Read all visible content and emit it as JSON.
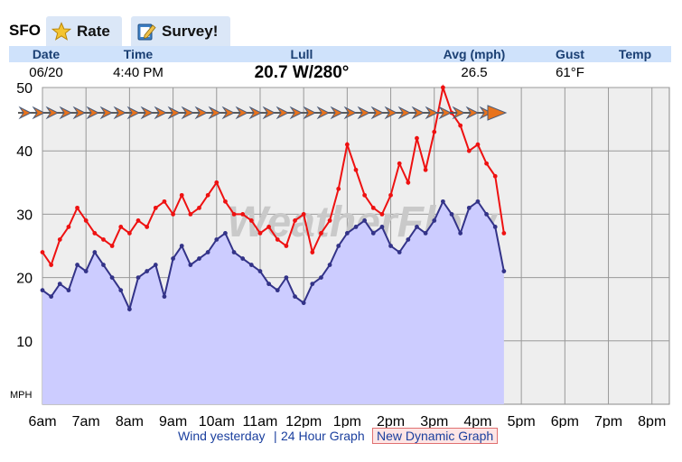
{
  "station": "SFO",
  "tabs": [
    {
      "label": "Rate",
      "icon": "star-icon"
    },
    {
      "label": "Survey!",
      "icon": "survey-pencil-icon"
    }
  ],
  "header": {
    "columns": [
      "Date",
      "Time",
      "Lull",
      "Avg (mph)",
      "Gust",
      "Temp"
    ]
  },
  "current": {
    "date": "06/20",
    "time": "4:40 PM",
    "wind": "20.7 W/280°",
    "avg": "26.5",
    "temp": "61°F"
  },
  "watermark": "WeatherFlow",
  "links": {
    "yesterday": "Wind yesterday",
    "separator": "|",
    "hour24": "24 Hour Graph",
    "dynamic": "New Dynamic Graph"
  },
  "colors": {
    "lull_line": "#333388",
    "lull_fill": "#ccccff",
    "gust_line": "#ee1111",
    "direction_arrow": "#e8731c",
    "plot_bg": "#eeeeee"
  },
  "chart_data": {
    "type": "line",
    "xlabel": "",
    "ylabel": "MPH",
    "ylim": [
      0,
      50
    ],
    "yticks": [
      10,
      20,
      30,
      40,
      50
    ],
    "xticks": [
      "6am",
      "7am",
      "8am",
      "9am",
      "10am",
      "11am",
      "12pm",
      "1pm",
      "2pm",
      "3pm",
      "4pm",
      "5pm",
      "6pm",
      "7pm",
      "8pm"
    ],
    "x_hours": [
      6.0,
      6.2,
      6.4,
      6.6,
      6.8,
      7.0,
      7.2,
      7.4,
      7.6,
      7.8,
      8.0,
      8.2,
      8.4,
      8.6,
      8.8,
      9.0,
      9.2,
      9.4,
      9.6,
      9.8,
      10.0,
      10.2,
      10.4,
      10.6,
      10.8,
      11.0,
      11.2,
      11.4,
      11.6,
      11.8,
      12.0,
      12.2,
      12.4,
      12.6,
      12.8,
      13.0,
      13.2,
      13.4,
      13.6,
      13.8,
      14.0,
      14.2,
      14.4,
      14.6,
      14.8,
      15.0,
      15.2,
      15.4,
      15.6,
      15.8,
      16.0,
      16.2,
      16.4,
      16.6
    ],
    "series": [
      {
        "values": [
          18,
          17,
          19,
          18,
          22,
          21,
          24,
          22,
          20,
          18,
          15,
          20,
          21,
          22,
          17,
          23,
          25,
          22,
          23,
          24,
          26,
          27,
          24,
          23,
          22,
          21,
          19,
          18,
          20,
          17,
          16,
          19,
          20,
          22,
          25,
          27,
          28,
          29,
          27,
          28,
          25,
          24,
          26,
          28,
          27,
          29,
          32,
          30,
          27,
          31,
          32,
          30,
          28,
          21
        ]
      },
      {
        "values": [
          24,
          22,
          26,
          28,
          31,
          29,
          27,
          26,
          25,
          28,
          27,
          29,
          28,
          31,
          32,
          30,
          33,
          30,
          31,
          33,
          35,
          32,
          30,
          30,
          29,
          27,
          28,
          26,
          25,
          29,
          30,
          24,
          27,
          29,
          34,
          41,
          37,
          33,
          31,
          30,
          33,
          38,
          35,
          42,
          37,
          43,
          50,
          46,
          44,
          40,
          41,
          38,
          36,
          27
        ]
      }
    ]
  }
}
